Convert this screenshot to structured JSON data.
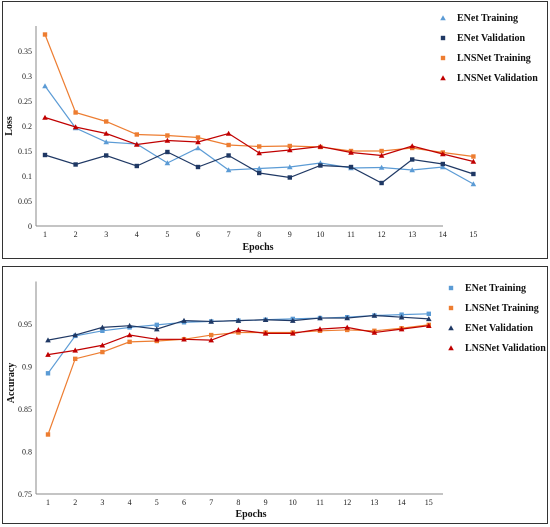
{
  "chart_data": [
    {
      "type": "line",
      "xlabel": "Epochs",
      "ylabel": "Loss",
      "x": [
        1,
        2,
        3,
        4,
        5,
        6,
        7,
        8,
        9,
        10,
        11,
        12,
        13,
        14,
        15
      ],
      "ylim": [
        0,
        0.4
      ],
      "yticks": [
        "0",
        "0.05",
        "0.1",
        "0.15",
        "0.2",
        "0.25",
        "0.3",
        "0.35"
      ],
      "ytick_values": [
        0,
        0.05,
        0.1,
        0.15,
        0.2,
        0.25,
        0.3,
        0.35
      ],
      "grid": false,
      "legend_position": "right",
      "series": [
        {
          "name": "ENet Training",
          "color": "#5b9bd5",
          "marker": "triangle",
          "values": [
            0.28,
            0.196,
            0.168,
            0.164,
            0.126,
            0.156,
            0.112,
            0.115,
            0.118,
            0.126,
            0.116,
            0.117,
            0.112,
            0.118,
            0.084
          ]
        },
        {
          "name": "ENet Validation",
          "color": "#1f3864",
          "marker": "square",
          "values": [
            0.142,
            0.123,
            0.141,
            0.12,
            0.148,
            0.118,
            0.141,
            0.106,
            0.097,
            0.121,
            0.118,
            0.086,
            0.133,
            0.124,
            0.104
          ]
        },
        {
          "name": "LNSNet Training",
          "color": "#ed7d31",
          "marker": "square",
          "values": [
            0.383,
            0.227,
            0.209,
            0.183,
            0.181,
            0.177,
            0.162,
            0.159,
            0.16,
            0.158,
            0.15,
            0.15,
            0.156,
            0.147,
            0.139
          ]
        },
        {
          "name": "LNSNet Validation",
          "color": "#c00000",
          "marker": "triangle",
          "values": [
            0.217,
            0.198,
            0.185,
            0.163,
            0.171,
            0.168,
            0.185,
            0.146,
            0.152,
            0.159,
            0.147,
            0.141,
            0.16,
            0.144,
            0.129
          ]
        }
      ]
    },
    {
      "type": "line",
      "xlabel": "Epochs",
      "ylabel": "Accuracy",
      "x": [
        1,
        2,
        3,
        4,
        5,
        6,
        7,
        8,
        9,
        10,
        11,
        12,
        13,
        14,
        15
      ],
      "ylim": [
        0.75,
        1.0
      ],
      "yticks": [
        "0.75",
        "0.8",
        "0.85",
        "0.9",
        "0.95"
      ],
      "ytick_values": [
        0.75,
        0.8,
        0.85,
        0.9,
        0.95
      ],
      "grid": false,
      "legend_position": "right",
      "series": [
        {
          "name": "ENet Training",
          "color": "#5b9bd5",
          "marker": "square",
          "values": [
            0.892,
            0.936,
            0.942,
            0.946,
            0.949,
            0.952,
            0.953,
            0.954,
            0.955,
            0.956,
            0.957,
            0.958,
            0.96,
            0.961,
            0.962
          ]
        },
        {
          "name": "LNSNet Training",
          "color": "#ed7d31",
          "marker": "square",
          "values": [
            0.82,
            0.909,
            0.917,
            0.929,
            0.93,
            0.932,
            0.937,
            0.94,
            0.94,
            0.94,
            0.942,
            0.943,
            0.942,
            0.945,
            0.949
          ]
        },
        {
          "name": "ENet Validation",
          "color": "#1f3864",
          "marker": "triangle",
          "values": [
            0.931,
            0.937,
            0.946,
            0.948,
            0.944,
            0.954,
            0.953,
            0.954,
            0.955,
            0.954,
            0.957,
            0.957,
            0.96,
            0.958,
            0.956
          ]
        },
        {
          "name": "LNSNet Validation",
          "color": "#c00000",
          "marker": "triangle",
          "values": [
            0.914,
            0.919,
            0.925,
            0.937,
            0.932,
            0.932,
            0.931,
            0.943,
            0.939,
            0.939,
            0.944,
            0.946,
            0.94,
            0.944,
            0.948
          ]
        }
      ]
    }
  ]
}
